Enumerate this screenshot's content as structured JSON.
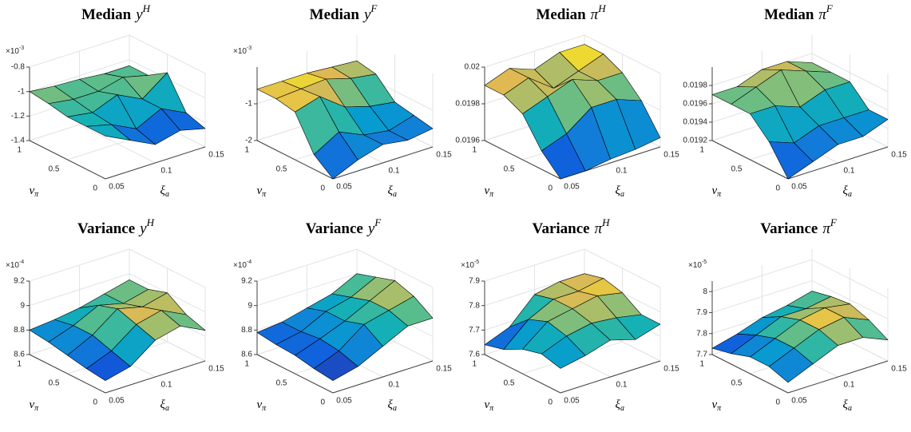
{
  "chart_data": [
    {
      "type": "surface",
      "title": {
        "text": "Median",
        "var": "y",
        "sup": "H"
      },
      "exponent": {
        "base": "×10",
        "exp": "-3"
      },
      "xlabel": {
        "var": "ξ",
        "sub": "a"
      },
      "ylabel": {
        "var": "ν",
        "sub": "π"
      },
      "x": [
        0.05,
        0.075,
        0.1,
        0.125,
        0.15
      ],
      "y": [
        0,
        0.25,
        0.5,
        0.75,
        1
      ],
      "z": [
        [
          -1.05,
          -1.15,
          -1.25,
          -1.2,
          -1.25
        ],
        [
          -1.05,
          -1.1,
          -1.2,
          -1.1,
          -1.2
        ],
        [
          -1.05,
          -1.08,
          -1.0,
          -1.1,
          -0.95
        ],
        [
          -1.02,
          -1.05,
          -1.05,
          -1.0,
          -1.05
        ],
        [
          -1.0,
          -1.02,
          -1.03,
          -1.05,
          -1.05
        ]
      ],
      "xlim": [
        0.05,
        0.15
      ],
      "ylim": [
        0,
        1
      ],
      "zlim": [
        -1.4,
        -0.8
      ],
      "xticks": [
        0.05,
        0.1,
        0.15
      ],
      "yticks": [
        0,
        0.5,
        1
      ],
      "zticks": [
        -1.4,
        -1.2,
        -1,
        -0.8
      ]
    },
    {
      "type": "surface",
      "title": {
        "text": "Median",
        "var": "y",
        "sup": "F"
      },
      "exponent": {
        "base": "×10",
        "exp": "-3"
      },
      "xlabel": {
        "var": "ξ",
        "sub": "a"
      },
      "ylabel": {
        "var": "ν",
        "sub": "π"
      },
      "x": [
        0.05,
        0.075,
        0.1,
        0.125,
        0.15
      ],
      "y": [
        0,
        0.25,
        0.5,
        0.75,
        1
      ],
      "z": [
        [
          -2.0,
          -1.7,
          -1.5,
          -1.6,
          -1.5
        ],
        [
          -1.6,
          -1.2,
          -1.5,
          -1.6,
          -1.4
        ],
        [
          -0.7,
          -0.5,
          -1.0,
          -1.2,
          -1.3
        ],
        [
          -0.6,
          -0.55,
          -0.5,
          -0.7,
          -0.8
        ],
        [
          -0.6,
          -0.6,
          -0.6,
          -0.65,
          -0.7
        ]
      ],
      "xlim": [
        0.05,
        0.15
      ],
      "ylim": [
        0,
        1
      ],
      "zlim": [
        -2,
        0
      ],
      "xticks": [
        0.05,
        0.1,
        0.15
      ],
      "yticks": [
        0,
        0.5,
        1
      ],
      "zticks": [
        -2,
        -1
      ]
    },
    {
      "type": "surface",
      "title": {
        "text": "Median",
        "var": "π",
        "sup": "H"
      },
      "xlabel": {
        "var": "ξ",
        "sub": "a"
      },
      "ylabel": {
        "var": "ν",
        "sub": "π"
      },
      "x": [
        0.05,
        0.075,
        0.1,
        0.125,
        0.15
      ],
      "y": [
        0,
        0.25,
        0.5,
        0.75,
        1
      ],
      "z": [
        [
          0.0196,
          0.0196,
          0.01962,
          0.01963,
          0.01965
        ],
        [
          0.0197,
          0.01975,
          0.01985,
          0.01985,
          0.0198
        ],
        [
          0.01985,
          0.0199,
          0.01995,
          0.0199,
          0.0199
        ],
        [
          0.0199,
          0.01995,
          0.01985,
          0.0199,
          0.01995
        ],
        [
          0.0199,
          0.01995,
          0.0199,
          0.01995,
          0.01995
        ]
      ],
      "xlim": [
        0.05,
        0.15
      ],
      "ylim": [
        0,
        1
      ],
      "zlim": [
        0.0196,
        0.02
      ],
      "xticks": [
        0.05,
        0.1,
        0.15
      ],
      "yticks": [
        0,
        0.5,
        1
      ],
      "zticks": [
        0.0196,
        0.0198,
        0.02
      ]
    },
    {
      "type": "surface",
      "title": {
        "text": "Median",
        "var": "π",
        "sup": "F"
      },
      "xlabel": {
        "var": "ξ",
        "sub": "a"
      },
      "ylabel": {
        "var": "ν",
        "sub": "π"
      },
      "x": [
        0.05,
        0.075,
        0.1,
        0.125,
        0.15
      ],
      "y": [
        0,
        0.25,
        0.5,
        0.75,
        1
      ],
      "z": [
        [
          0.0192,
          0.0193,
          0.0194,
          0.0194,
          0.0195
        ],
        [
          0.0195,
          0.0194,
          0.0195,
          0.0195,
          0.0195
        ],
        [
          0.0197,
          0.0197,
          0.0196,
          0.0197,
          0.0197
        ],
        [
          0.0197,
          0.0198,
          0.0199,
          0.0198,
          0.0197
        ],
        [
          0.0197,
          0.0197,
          0.0198,
          0.0198,
          0.0197
        ]
      ],
      "xlim": [
        0.05,
        0.15
      ],
      "ylim": [
        0,
        1
      ],
      "zlim": [
        0.0192,
        0.02
      ],
      "xticks": [
        0.05,
        0.1,
        0.15
      ],
      "yticks": [
        0,
        0.5,
        1
      ],
      "zticks": [
        0.0192,
        0.0194,
        0.0196,
        0.0198
      ]
    },
    {
      "type": "surface",
      "title": {
        "text": "Variance",
        "var": "y",
        "sup": "H"
      },
      "exponent": {
        "base": "×10",
        "exp": "-4"
      },
      "xlabel": {
        "var": "ξ",
        "sub": "a"
      },
      "ylabel": {
        "var": "ν",
        "sub": "π"
      },
      "x": [
        0.05,
        0.075,
        0.1,
        0.125,
        0.15
      ],
      "y": [
        0,
        0.25,
        0.5,
        0.75,
        1
      ],
      "z": [
        [
          8.7,
          8.75,
          8.9,
          8.95,
          8.85
        ],
        [
          8.72,
          8.8,
          8.95,
          9.0,
          8.9
        ],
        [
          8.75,
          8.85,
          9.0,
          8.95,
          9.0
        ],
        [
          8.78,
          8.85,
          8.95,
          8.9,
          8.95
        ],
        [
          8.8,
          8.82,
          8.85,
          8.9,
          8.95
        ]
      ],
      "xlim": [
        0.05,
        0.15
      ],
      "ylim": [
        0,
        1
      ],
      "zlim": [
        8.6,
        9.2
      ],
      "xticks": [
        0.05,
        0.1,
        0.15
      ],
      "yticks": [
        0,
        0.5,
        1
      ],
      "zticks": [
        8.6,
        8.8,
        9,
        9.2
      ]
    },
    {
      "type": "surface",
      "title": {
        "text": "Variance",
        "var": "y",
        "sup": "F"
      },
      "exponent": {
        "base": "×10",
        "exp": "-4"
      },
      "xlabel": {
        "var": "ξ",
        "sub": "a"
      },
      "ylabel": {
        "var": "ν",
        "sub": "π"
      },
      "x": [
        0.05,
        0.075,
        0.1,
        0.125,
        0.15
      ],
      "y": [
        0,
        0.25,
        0.5,
        0.75,
        1
      ],
      "z": [
        [
          8.7,
          8.75,
          8.85,
          8.95,
          8.95
        ],
        [
          8.72,
          8.8,
          8.95,
          9.0,
          9.05
        ],
        [
          8.75,
          8.82,
          8.9,
          9.0,
          9.1
        ],
        [
          8.76,
          8.8,
          8.9,
          8.95,
          9.05
        ],
        [
          8.78,
          8.8,
          8.85,
          8.9,
          9.0
        ]
      ],
      "xlim": [
        0.05,
        0.15
      ],
      "ylim": [
        0,
        1
      ],
      "zlim": [
        8.6,
        9.2
      ],
      "xticks": [
        0.05,
        0.1,
        0.15
      ],
      "yticks": [
        0,
        0.5,
        1
      ],
      "zticks": [
        8.6,
        8.8,
        9,
        9.2
      ]
    },
    {
      "type": "surface",
      "title": {
        "text": "Variance",
        "var": "π",
        "sup": "H"
      },
      "exponent": {
        "base": "×10",
        "exp": "-5"
      },
      "xlabel": {
        "var": "ξ",
        "sub": "a"
      },
      "ylabel": {
        "var": "ν",
        "sub": "π"
      },
      "x": [
        0.05,
        0.075,
        0.1,
        0.125,
        0.15
      ],
      "y": [
        0,
        0.25,
        0.5,
        0.75,
        1
      ],
      "z": [
        [
          7.7,
          7.72,
          7.75,
          7.72,
          7.75
        ],
        [
          7.72,
          7.76,
          7.78,
          7.77,
          7.75
        ],
        [
          7.7,
          7.78,
          7.8,
          7.82,
          7.8
        ],
        [
          7.66,
          7.75,
          7.8,
          7.8,
          7.82
        ],
        [
          7.64,
          7.68,
          7.78,
          7.8,
          7.8
        ]
      ],
      "xlim": [
        0.05,
        0.15
      ],
      "ylim": [
        0,
        1
      ],
      "zlim": [
        7.6,
        7.9
      ],
      "xticks": [
        0.05,
        0.1,
        0.15
      ],
      "yticks": [
        0,
        0.5,
        1
      ],
      "zticks": [
        7.6,
        7.7,
        7.8,
        7.9
      ]
    },
    {
      "type": "surface",
      "title": {
        "text": "Variance",
        "var": "π",
        "sup": "F"
      },
      "exponent": {
        "base": "×10",
        "exp": "-5"
      },
      "xlabel": {
        "var": "ξ",
        "sub": "a"
      },
      "ylabel": {
        "var": "ν",
        "sub": "π"
      },
      "x": [
        0.05,
        0.075,
        0.1,
        0.125,
        0.15
      ],
      "y": [
        0,
        0.25,
        0.5,
        0.75,
        1
      ],
      "z": [
        [
          7.75,
          7.8,
          7.85,
          7.85,
          7.8
        ],
        [
          7.78,
          7.83,
          7.88,
          7.9,
          7.85
        ],
        [
          7.78,
          7.83,
          7.88,
          7.9,
          7.88
        ],
        [
          7.75,
          7.8,
          7.85,
          7.85,
          7.87
        ],
        [
          7.73,
          7.76,
          7.8,
          7.82,
          7.85
        ]
      ],
      "xlim": [
        0.05,
        0.15
      ],
      "ylim": [
        0,
        1
      ],
      "zlim": [
        7.7,
        8.05
      ],
      "xticks": [
        0.05,
        0.1,
        0.15
      ],
      "yticks": [
        0,
        0.5,
        1
      ],
      "zticks": [
        7.7,
        7.8,
        7.9,
        8
      ]
    }
  ]
}
